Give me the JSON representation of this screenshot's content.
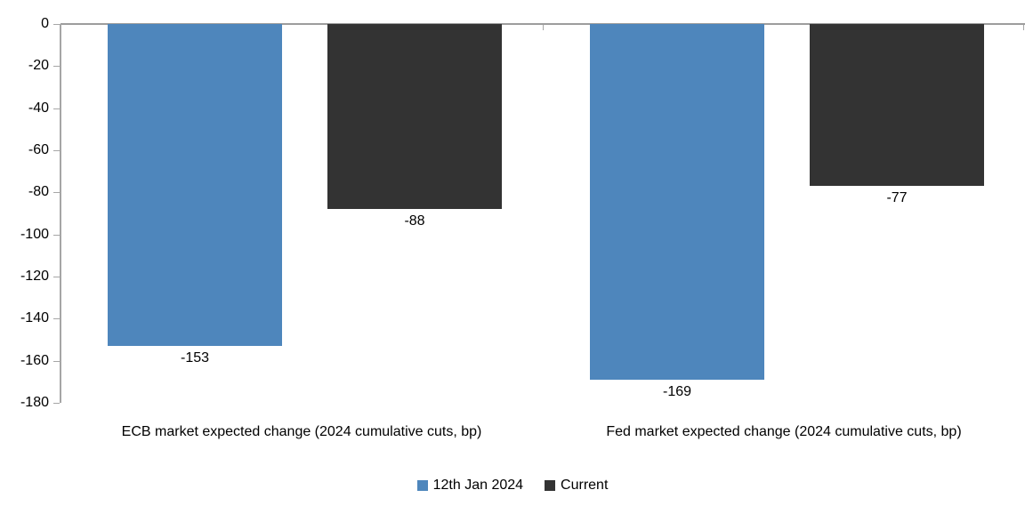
{
  "chart_data": {
    "type": "bar",
    "categories": [
      "ECB market expected change (2024 cumulative cuts, bp)",
      "Fed market expected change (2024 cumulative cuts, bp)"
    ],
    "series": [
      {
        "name": "12th Jan 2024",
        "color": "#4E86BC",
        "values": [
          -153,
          -169
        ]
      },
      {
        "name": "Current",
        "color": "#333333",
        "values": [
          -88,
          -77
        ]
      }
    ],
    "data_labels": [
      [
        "-153",
        "-169"
      ],
      [
        "-88",
        "-77"
      ]
    ],
    "yticks": [
      0,
      -20,
      -40,
      -60,
      -80,
      -100,
      -120,
      -140,
      -160,
      -180
    ],
    "ylim": [
      -180,
      0
    ],
    "grid": false,
    "legend_position": "bottom",
    "axis_color": "#a6a6a6",
    "zero_line_color": "#9d9d9d",
    "text_color": "#000000",
    "background": "#ffffff"
  }
}
